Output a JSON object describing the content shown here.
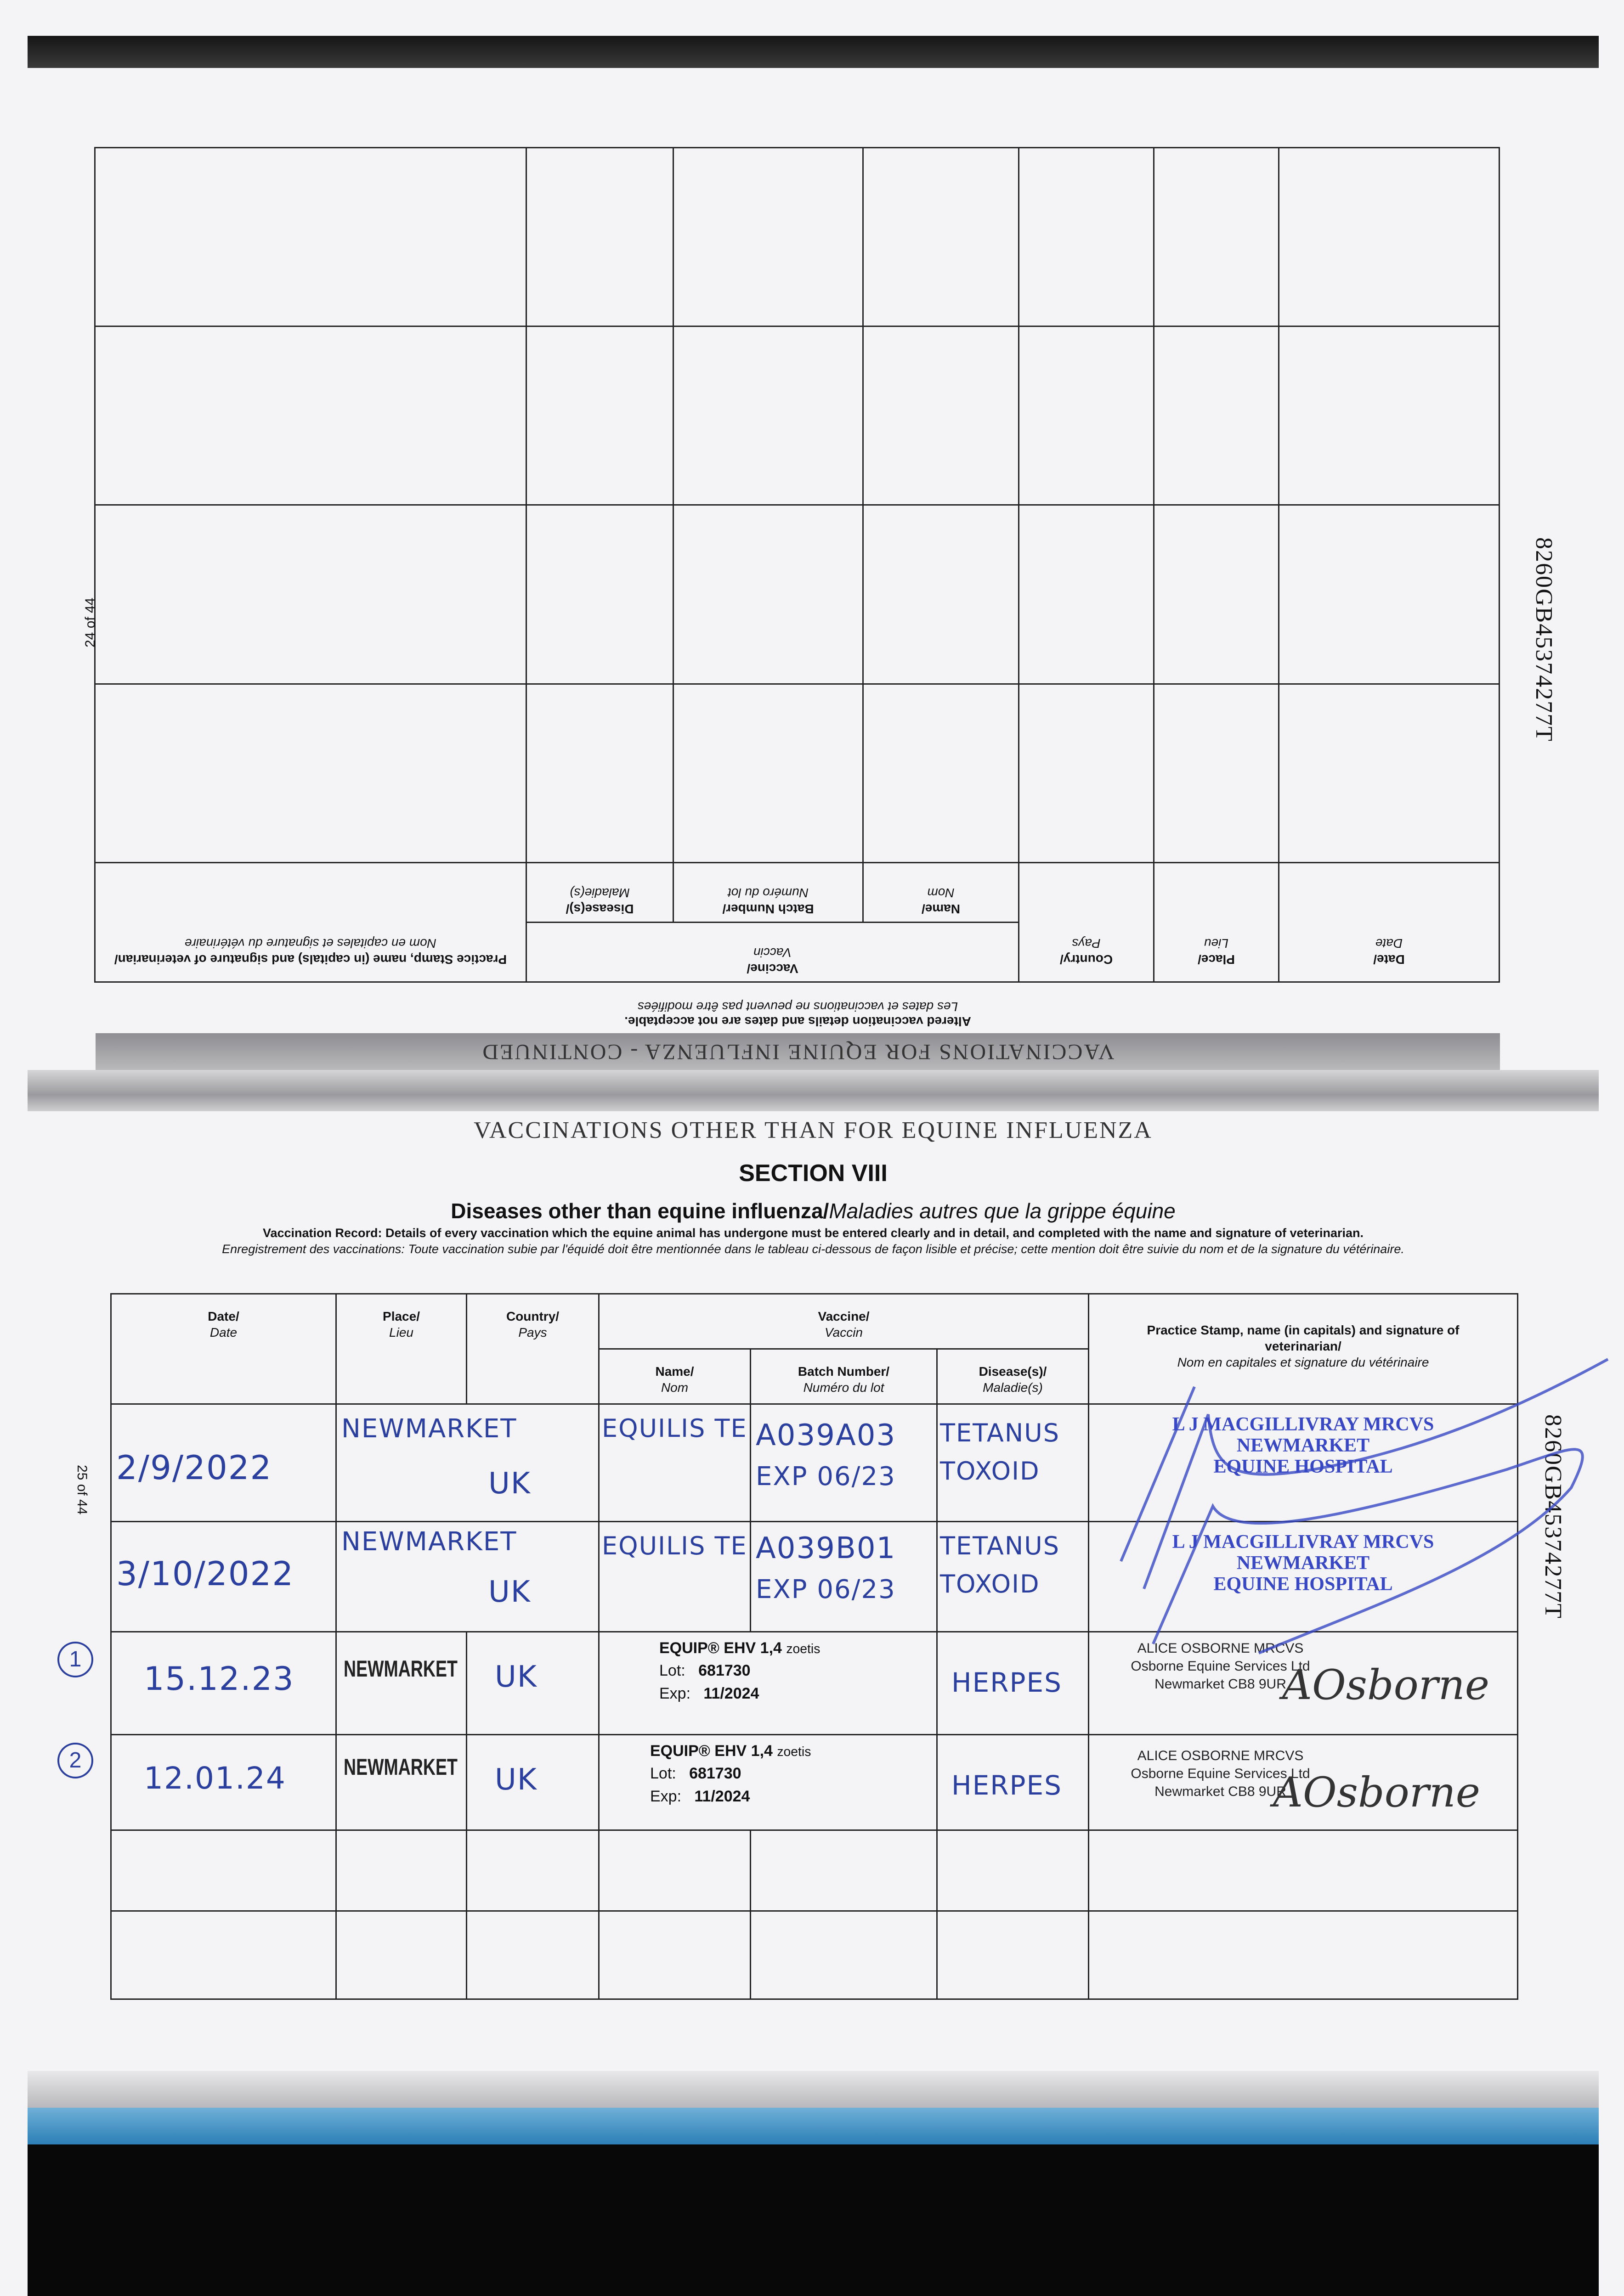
{
  "upper_page": {
    "band_title": "VACCINATIONS FOR EQUINE INFLUENZA - CONTINUED",
    "note_en": "Altered vaccination details and dates are not acceptable.",
    "note_fr": "Les dates et vaccinations ne peuvent pas être modifiées",
    "page_number": "24 of 44",
    "passport_id": "8260GB45374277T",
    "headers": {
      "date": "Date/",
      "date_fr": "Date",
      "place": "Place/",
      "place_fr": "Lieu",
      "country": "Country/",
      "country_fr": "Pays",
      "vaccine": "Vaccine/",
      "vaccine_fr": "Vaccin",
      "name": "Name/",
      "name_fr": "Nom",
      "batch": "Batch Number/",
      "batch_fr": "Numéro du lot",
      "disease": "Disease(s)/",
      "disease_fr": "Maladie(s)",
      "stamp": "Practice Stamp, name (in capitals) and signature of veterinarian/",
      "stamp_fr": "Nom en capitales et signature du vétérinaire"
    }
  },
  "lower_page": {
    "band_title": "VACCINATIONS OTHER THAN FOR EQUINE INFLUENZA",
    "section": "SECTION VIII",
    "subtitle_en": "Diseases other than equine influenza/",
    "subtitle_fr": "Maladies autres que la grippe équine",
    "instructions_en": "Vaccination Record: Details of every vaccination which the equine animal has undergone must be entered clearly and in detail, and completed with the name and signature of veterinarian.",
    "instructions_fr": "Enregistrement des vaccinations: Toute vaccination subie par l'équidé doit être mentionnée dans le tableau ci-dessous de façon lisible et précise; cette mention doit être suivie du nom et de la signature du vétérinaire.",
    "page_number": "25 of 44",
    "passport_id": "8260GB45374277T",
    "headers": {
      "date": "Date/",
      "date_fr": "Date",
      "place": "Place/",
      "place_fr": "Lieu",
      "country": "Country/",
      "country_fr": "Pays",
      "vaccine": "Vaccine/",
      "vaccine_fr": "Vaccin",
      "name": "Name/",
      "name_fr": "Nom",
      "batch": "Batch Number/",
      "batch_fr": "Numéro du lot",
      "disease": "Disease(s)/",
      "disease_fr": "Maladie(s)",
      "stamp": "Practice Stamp, name (in capitals) and signature of veterinarian/",
      "stamp_fr": "Nom en capitales et signature du vétérinaire"
    },
    "rows": [
      {
        "marker": "",
        "date": "2/9/2022",
        "place": "NEWMARKET",
        "country": "UK",
        "name": "EQUILIS TE",
        "batch": "A039A03",
        "batch_exp": "EXP 06/23",
        "disease": "TETANUS",
        "disease2": "TOXOID",
        "stamp": [
          "L J MACGILLIVRAY MRCVS",
          "NEWMARKET",
          "EQUINE HOSPITAL"
        ]
      },
      {
        "marker": "",
        "date": "3/10/2022",
        "place": "NEWMARKET",
        "country": "UK",
        "name": "EQUILIS TE",
        "batch": "A039B01",
        "batch_exp": "EXP 06/23",
        "disease": "TETANUS",
        "disease2": "TOXOID",
        "stamp": [
          "L J MACGILLIVRAY MRCVS",
          "NEWMARKET",
          "EQUINE HOSPITAL"
        ]
      },
      {
        "marker": "1",
        "date": "15.12.23",
        "place": "NEWMARKET",
        "country": "UK",
        "vaccine_label": "EQUIP® EHV 1,4",
        "maker": "zoetis",
        "lot_label": "Lot:",
        "lot": "681730",
        "exp_label": "Exp:",
        "exp": "11/2024",
        "disease": "HERPES",
        "stamp": [
          "ALICE OSBORNE MRCVS",
          "Osborne Equine Services Ltd",
          "Newmarket CB8 9UR"
        ],
        "signature": "AOsborne"
      },
      {
        "marker": "2",
        "date": "12.01.24",
        "place": "NEWMARKET",
        "country": "UK",
        "vaccine_label": "EQUIP® EHV 1,4",
        "maker": "zoetis",
        "lot_label": "Lot:",
        "lot": "681730",
        "exp_label": "Exp:",
        "exp": "11/2024",
        "disease": "HERPES",
        "stamp": [
          "ALICE OSBORNE MRCVS",
          "Osborne Equine Services Ltd",
          "Newmarket CB8 9UR"
        ],
        "signature": "AOsborne"
      }
    ]
  },
  "colors": {
    "ink_blue": "#2a3f9e",
    "stamp_blue": "#3848c4",
    "scanner_blue": "#2c7fb5"
  }
}
